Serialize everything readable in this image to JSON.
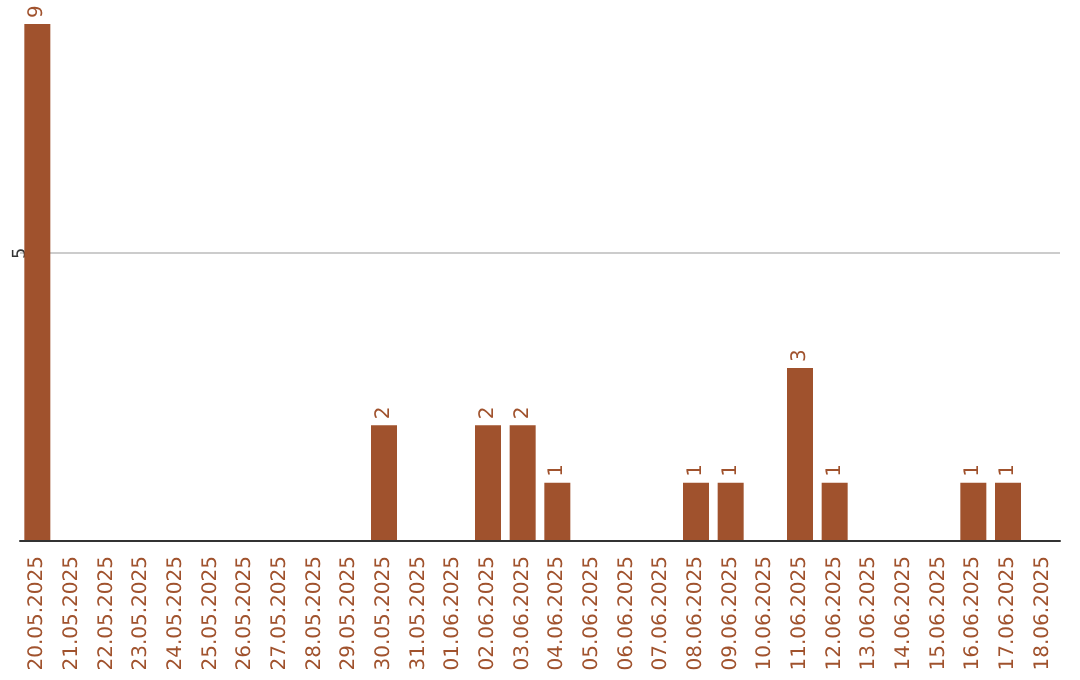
{
  "chart_data": {
    "type": "bar",
    "categories": [
      "20.05.2025",
      "21.05.2025",
      "22.05.2025",
      "23.05.2025",
      "24.05.2025",
      "25.05.2025",
      "26.05.2025",
      "27.05.2025",
      "28.05.2025",
      "29.05.2025",
      "30.05.2025",
      "31.05.2025",
      "01.06.2025",
      "02.06.2025",
      "03.06.2025",
      "04.06.2025",
      "05.06.2025",
      "06.06.2025",
      "07.06.2025",
      "08.06.2025",
      "09.06.2025",
      "10.06.2025",
      "11.06.2025",
      "12.06.2025",
      "13.06.2025",
      "14.06.2025",
      "15.06.2025",
      "16.06.2025",
      "17.06.2025",
      "18.06.2025"
    ],
    "values": [
      9,
      0,
      0,
      0,
      0,
      0,
      0,
      0,
      0,
      0,
      2,
      0,
      0,
      2,
      2,
      1,
      0,
      0,
      0,
      1,
      1,
      0,
      3,
      1,
      0,
      0,
      0,
      1,
      1,
      0
    ],
    "value_labels": [
      "9",
      null,
      null,
      null,
      null,
      null,
      null,
      null,
      null,
      null,
      "2",
      null,
      null,
      "2",
      "2",
      "1",
      null,
      null,
      null,
      "1",
      "1",
      null,
      "3",
      "1",
      null,
      null,
      null,
      "1",
      "1",
      null
    ],
    "color": "#a0522d",
    "ylim": [
      0,
      9
    ],
    "yticks": [
      5
    ],
    "grid": "y"
  }
}
